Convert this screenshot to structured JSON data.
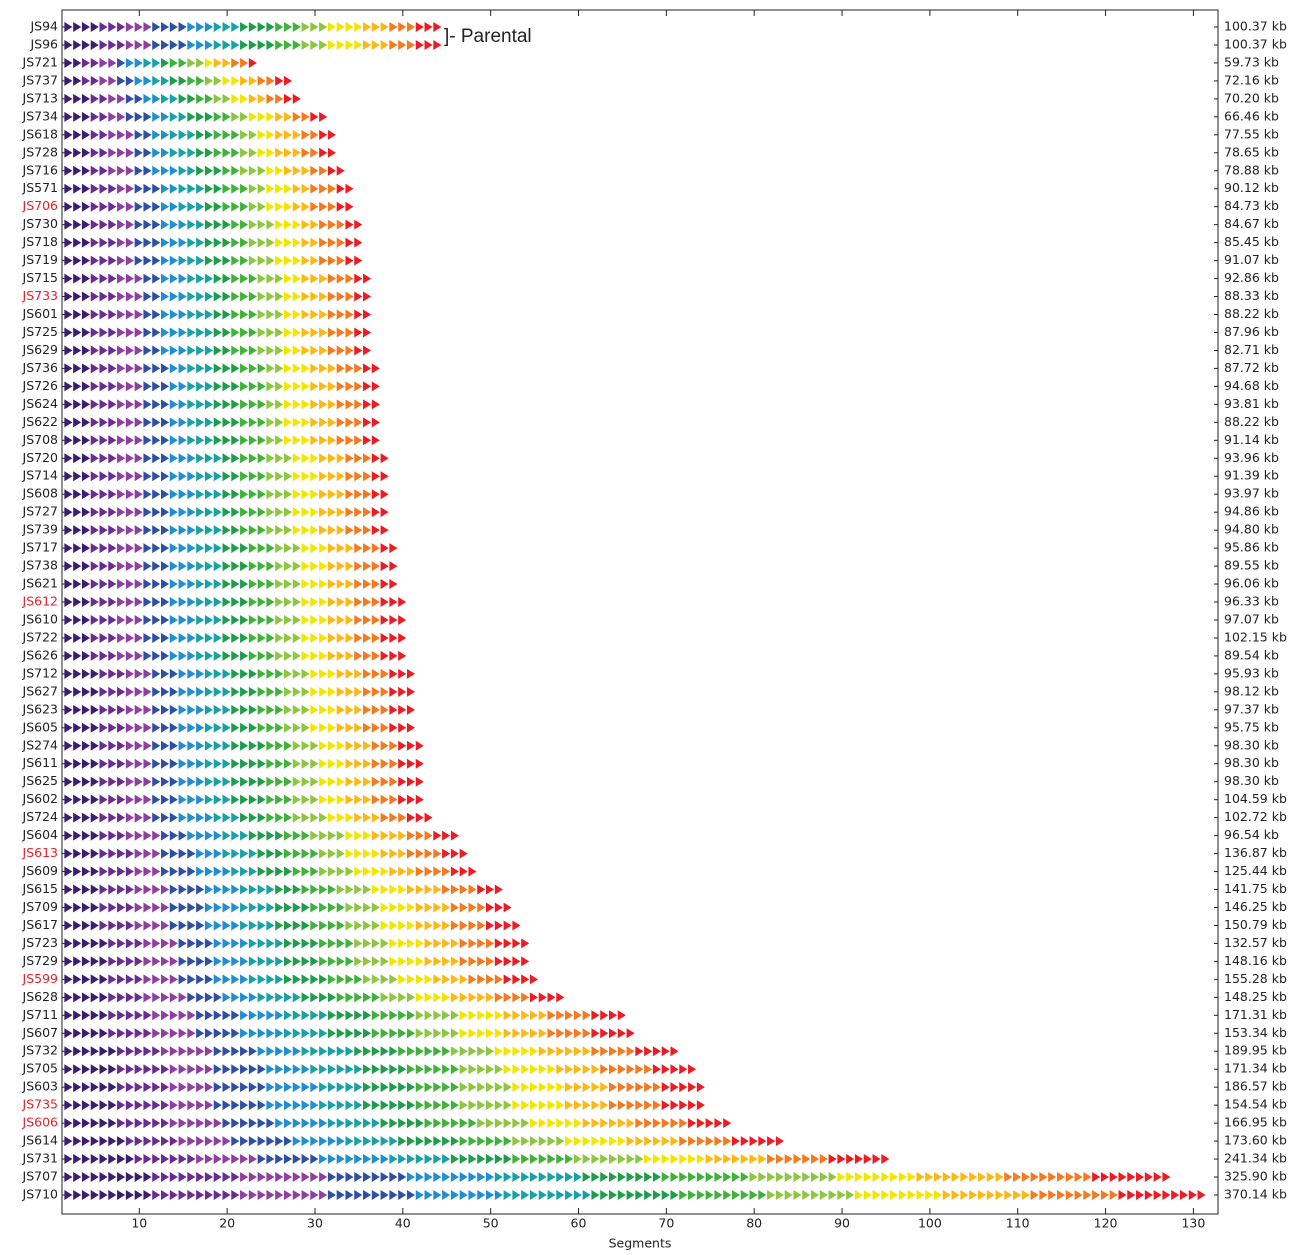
{
  "chart_data": {
    "type": "segment-rows",
    "x_label": "Segments",
    "annotation": "]- Parental",
    "xlim": [
      1.2,
      132.8
    ],
    "xticks": [
      10,
      20,
      30,
      40,
      50,
      60,
      70,
      80,
      90,
      100,
      110,
      120,
      130
    ],
    "palette": [
      "#3b1f6e",
      "#6a2c91",
      "#8e3fa0",
      "#2f4fa2",
      "#1f8fd0",
      "#17a3a6",
      "#1e9e4a",
      "#3fb23a",
      "#8dc63f",
      "#f2e600",
      "#fbb917",
      "#f4791f",
      "#ed1c24"
    ],
    "categories": [
      "JS94",
      "JS96",
      "JS721",
      "JS737",
      "JS713",
      "JS734",
      "JS618",
      "JS728",
      "JS716",
      "JS571",
      "JS706",
      "JS730",
      "JS718",
      "JS719",
      "JS715",
      "JS733",
      "JS601",
      "JS725",
      "JS629",
      "JS736",
      "JS726",
      "JS624",
      "JS622",
      "JS708",
      "JS720",
      "JS714",
      "JS608",
      "JS727",
      "JS739",
      "JS717",
      "JS738",
      "JS621",
      "JS612",
      "JS610",
      "JS722",
      "JS626",
      "JS712",
      "JS627",
      "JS623",
      "JS605",
      "JS274",
      "JS611",
      "JS625",
      "JS602",
      "JS724",
      "JS604",
      "JS613",
      "JS609",
      "JS615",
      "JS709",
      "JS617",
      "JS723",
      "JS729",
      "JS599",
      "JS628",
      "JS711",
      "JS607",
      "JS732",
      "JS705",
      "JS603",
      "JS735",
      "JS606",
      "JS614",
      "JS731",
      "JS707",
      "JS710"
    ],
    "values": [
      43,
      43,
      22,
      26,
      27,
      30,
      31,
      31,
      32,
      33,
      33,
      34,
      34,
      34,
      35,
      35,
      35,
      35,
      35,
      36,
      36,
      36,
      36,
      36,
      37,
      37,
      37,
      37,
      37,
      38,
      38,
      38,
      39,
      39,
      39,
      39,
      40,
      40,
      40,
      40,
      41,
      41,
      41,
      41,
      42,
      45,
      46,
      47,
      50,
      51,
      52,
      53,
      53,
      54,
      57,
      64,
      65,
      70,
      72,
      73,
      73,
      76,
      82,
      94,
      126,
      130
    ],
    "sizes": [
      "100.37 kb",
      "100.37 kb",
      "59.73 kb",
      "72.16 kb",
      "70.20 kb",
      "66.46 kb",
      "77.55 kb",
      "78.65 kb",
      "78.88 kb",
      "90.12 kb",
      "84.73 kb",
      "84.67 kb",
      "85.45 kb",
      "91.07 kb",
      "92.86 kb",
      "88.33 kb",
      "88.22 kb",
      "87.96 kb",
      "82.71 kb",
      "87.72 kb",
      "94.68 kb",
      "93.81 kb",
      "88.22 kb",
      "91.14 kb",
      "93.96 kb",
      "91.39 kb",
      "93.97 kb",
      "94.86 kb",
      "94.80 kb",
      "95.86 kb",
      "89.55 kb",
      "96.06 kb",
      "96.33 kb",
      "97.07 kb",
      "102.15 kb",
      "89.54 kb",
      "95.93 kb",
      "98.12 kb",
      "97.37 kb",
      "95.75 kb",
      "98.30 kb",
      "98.30 kb",
      "98.30 kb",
      "104.59 kb",
      "102.72 kb",
      "96.54 kb",
      "136.87 kb",
      "125.44 kb",
      "141.75 kb",
      "146.25 kb",
      "150.79 kb",
      "132.57 kb",
      "148.16 kb",
      "155.28 kb",
      "148.25 kb",
      "171.31 kb",
      "153.34 kb",
      "189.95 kb",
      "171.34 kb",
      "186.57 kb",
      "154.54 kb",
      "166.95 kb",
      "173.60 kb",
      "241.34 kb",
      "325.90 kb",
      "370.14 kb"
    ],
    "label_colors": [
      "#222",
      "#222",
      "#222",
      "#222",
      "#222",
      "#222",
      "#222",
      "#222",
      "#222",
      "#222",
      "#e4222a",
      "#222",
      "#222",
      "#222",
      "#222",
      "#e4222a",
      "#222",
      "#222",
      "#222",
      "#222",
      "#222",
      "#222",
      "#222",
      "#222",
      "#222",
      "#222",
      "#222",
      "#222",
      "#222",
      "#222",
      "#222",
      "#222",
      "#e4222a",
      "#222",
      "#222",
      "#222",
      "#222",
      "#222",
      "#222",
      "#222",
      "#222",
      "#222",
      "#222",
      "#222",
      "#222",
      "#222",
      "#e4222a",
      "#222",
      "#222",
      "#222",
      "#222",
      "#222",
      "#222",
      "#e4222a",
      "#222",
      "#222",
      "#222",
      "#222",
      "#222",
      "#222",
      "#e4222a",
      "#e4222a",
      "#222",
      "#222",
      "#222",
      "#222"
    ]
  }
}
